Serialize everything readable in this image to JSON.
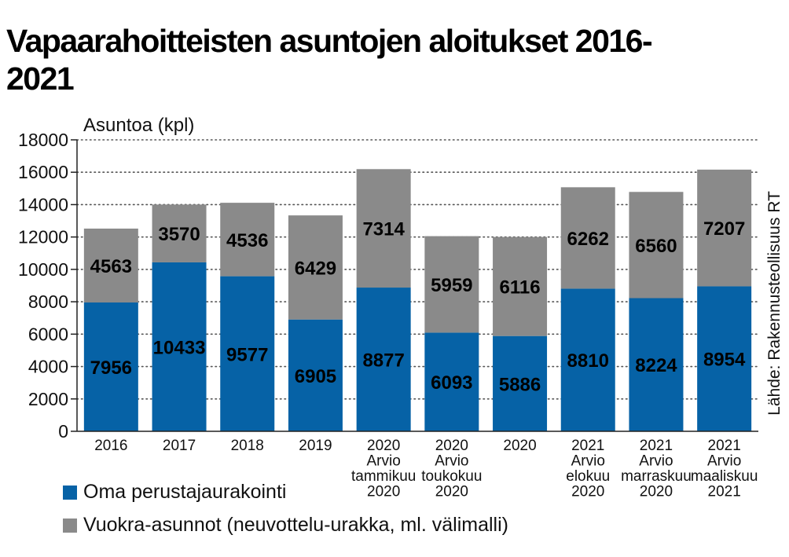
{
  "title": "Vapaarahoitteisten asuntojen aloitukset 2016-2021",
  "source": "Lähde: Rakennusteollisuus RT",
  "colors": {
    "series0": "#0662a6",
    "series1": "#8a8a8a",
    "grid": "#555555",
    "axis": "#222222"
  },
  "legend": [
    {
      "label": "Oma perustajaurakointi"
    },
    {
      "label": "Vuokra-asunnot (neuvottelu-urakka, ml. välimalli)"
    }
  ],
  "chart_data": {
    "type": "bar",
    "stacked": true,
    "title": "Vapaarahoitteisten asuntojen aloitukset 2016-2021",
    "ylabel": "Asuntoa (kpl)",
    "xlabel": "",
    "ylim": [
      0,
      18000
    ],
    "yticks": [
      0,
      2000,
      4000,
      6000,
      8000,
      10000,
      12000,
      14000,
      16000,
      18000
    ],
    "grid": "horizontal dotted",
    "legend_position": "bottom-left",
    "categories": [
      [
        "2016"
      ],
      [
        "2017"
      ],
      [
        "2018"
      ],
      [
        "2019"
      ],
      [
        "2020",
        "Arvio",
        "tammikuu",
        "2020"
      ],
      [
        "2020",
        "Arvio",
        "toukokuu",
        "2020"
      ],
      [
        "2020"
      ],
      [
        "2021",
        "Arvio",
        "elokuu",
        "2020"
      ],
      [
        "2021",
        "Arvio",
        "marraskuu",
        "2020"
      ],
      [
        "2021",
        "Arvio",
        "maaliskuu",
        "2021"
      ]
    ],
    "series": [
      {
        "name": "Oma perustajaurakointi",
        "values": [
          7956,
          10433,
          9577,
          6905,
          8877,
          6093,
          5886,
          8810,
          8224,
          8954
        ]
      },
      {
        "name": "Vuokra-asunnot (neuvottelu-urakka, ml. välimalli)",
        "values": [
          4563,
          3570,
          4536,
          6429,
          7314,
          5959,
          6116,
          6262,
          6560,
          7207
        ]
      }
    ]
  }
}
